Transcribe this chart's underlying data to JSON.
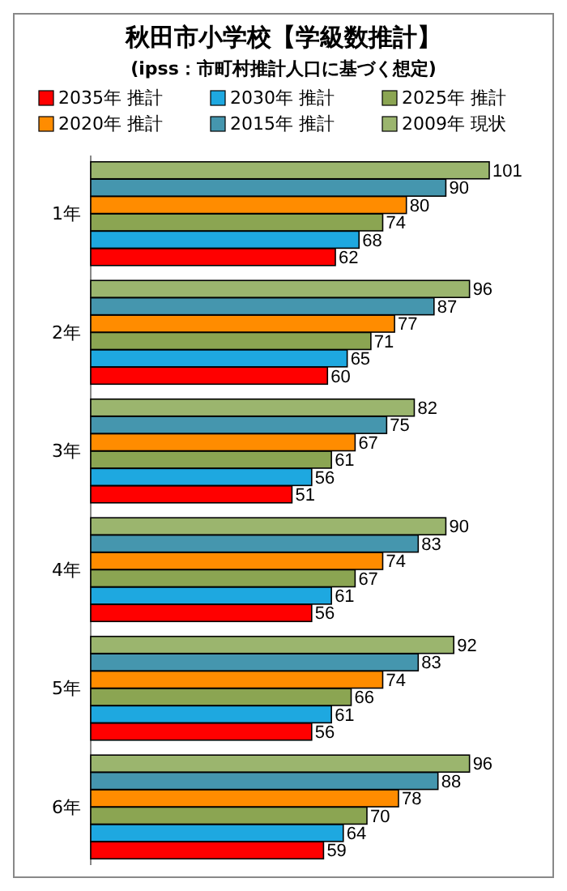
{
  "chart_data": {
    "type": "bar",
    "orientation": "horizontal",
    "title": "秋田市小学校【学級数推計】",
    "subtitle": "(ipss：市町村推計人口に基づく想定)",
    "categories": [
      "1年",
      "2年",
      "3年",
      "4年",
      "5年",
      "6年"
    ],
    "series": [
      {
        "name": "2035年 推計",
        "color": "#ff0000",
        "values": [
          62,
          60,
          51,
          56,
          56,
          59
        ]
      },
      {
        "name": "2030年 推計",
        "color": "#1ea8e0",
        "values": [
          68,
          65,
          56,
          61,
          61,
          64
        ]
      },
      {
        "name": "2025年 推計",
        "color": "#8ba552",
        "values": [
          74,
          71,
          61,
          67,
          66,
          70
        ]
      },
      {
        "name": "2020年 推計",
        "color": "#ff8c00",
        "values": [
          80,
          77,
          67,
          74,
          74,
          78
        ]
      },
      {
        "name": "2015年 推計",
        "color": "#4596ae",
        "values": [
          90,
          87,
          75,
          83,
          83,
          88
        ]
      },
      {
        "name": "2009年 現状",
        "color": "#9bb56e",
        "values": [
          101,
          96,
          82,
          90,
          92,
          96
        ]
      }
    ],
    "data_labels": true,
    "legend": "top",
    "grid": false
  }
}
